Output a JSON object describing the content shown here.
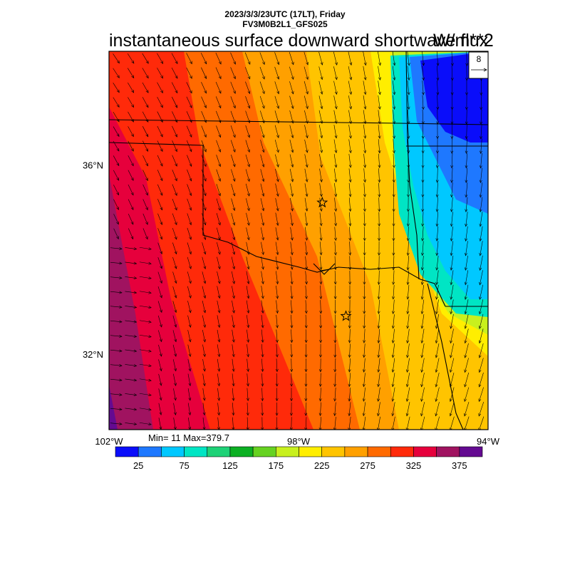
{
  "header": {
    "line1": "2023/3/3/23UTC (17LT), Friday",
    "line2": "FV3M0B2L1_GFS025"
  },
  "title": "instantaneous surface downward shortwave flux",
  "units": "W/m**2",
  "vector_reference": {
    "value": "8"
  },
  "axes": {
    "lat_ticks": [
      {
        "label": "36°N",
        "lat": 36
      },
      {
        "label": "32°N",
        "lat": 32
      }
    ],
    "lon_ticks": [
      {
        "label": "102°W",
        "lon": -102
      },
      {
        "label": "98°W",
        "lon": -98
      },
      {
        "label": "94°W",
        "lon": -94
      }
    ],
    "lon_range": [
      -102,
      -94
    ],
    "lat_range": [
      30.4,
      38.4
    ]
  },
  "stats": {
    "text": "Min= 11 Max=379.7",
    "min": 11,
    "max": 379.7
  },
  "colorbar": {
    "labels": [
      "25",
      "75",
      "125",
      "175",
      "225",
      "275",
      "325",
      "375"
    ],
    "colors": [
      "#0a0dfa",
      "#1e78ff",
      "#00c8ff",
      "#00e5c4",
      "#1ed277",
      "#0cb023",
      "#66d221",
      "#c8f01e",
      "#ffee00",
      "#ffc400",
      "#ffa000",
      "#ff6a00",
      "#ff2a0a",
      "#e6003c",
      "#a01360",
      "#640a91"
    ]
  },
  "markers": [
    {
      "name": "star-marker-1",
      "lon": -97.5,
      "lat": 35.2
    },
    {
      "name": "star-marker-2",
      "lon": -97.0,
      "lat": 32.8
    }
  ]
}
